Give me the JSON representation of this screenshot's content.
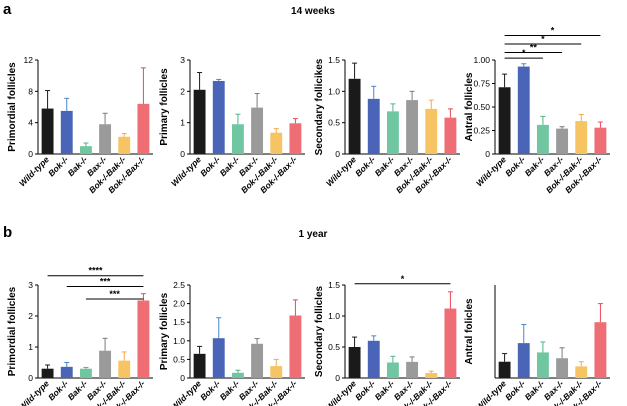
{
  "rows": [
    {
      "letter": "a",
      "title": "14 weeks"
    },
    {
      "letter": "b",
      "title": "1 year"
    }
  ],
  "colors": [
    "#1a1a1a",
    "#4a64b8",
    "#6fc6a0",
    "#9a9a9a",
    "#f6c463",
    "#ef6d74"
  ],
  "error_colors": [
    "#1a1a1a",
    "#4a86c8",
    "#4db688",
    "#7a7a7a",
    "#f3a94a",
    "#e84a56"
  ],
  "chart_data": [
    {
      "type": "bar",
      "row": 0,
      "categories": [
        "Wild-type",
        "Bok-/-",
        "Bak-/-",
        "Bax-/-",
        "Bok-/-Bak-/-",
        "Bok-/-Bax-/-"
      ],
      "values": [
        5.8,
        5.5,
        1.0,
        3.8,
        2.2,
        6.4
      ],
      "errors": [
        2.3,
        1.6,
        0.4,
        1.4,
        0.4,
        4.6
      ],
      "ylabel": "Primordial follicles",
      "ylim": [
        0,
        12
      ],
      "yticks": [
        "0",
        "4",
        "8",
        "12"
      ],
      "ytick_values": [
        0,
        4,
        8,
        12
      ],
      "significance": []
    },
    {
      "type": "bar",
      "row": 0,
      "categories": [
        "Wild-type",
        "Bok-/-",
        "Bak-/-",
        "Bax-/-",
        "Bok-/-Bak-/-",
        "Bok-/-Bax-/-"
      ],
      "values": [
        2.05,
        2.33,
        0.95,
        1.48,
        0.68,
        0.98
      ],
      "errors": [
        0.55,
        0.05,
        0.32,
        0.45,
        0.13,
        0.15
      ],
      "ylabel": "Primary follicles",
      "ylim": [
        0,
        3
      ],
      "yticks": [
        "0",
        "1",
        "2",
        "3"
      ],
      "ytick_values": [
        0,
        1,
        2,
        3
      ],
      "significance": []
    },
    {
      "type": "bar",
      "row": 0,
      "categories": [
        "Wild-type",
        "Bok-/-",
        "Bak-/-",
        "Bax-/-",
        "Bok-/-Bak-/-",
        "Bok-/-Bax-/-"
      ],
      "values": [
        1.2,
        0.88,
        0.68,
        0.86,
        0.72,
        0.58
      ],
      "errors": [
        0.25,
        0.2,
        0.12,
        0.14,
        0.14,
        0.14
      ],
      "ylabel": "Secondary follicikes",
      "ylim": [
        0,
        1.5
      ],
      "yticks": [
        "0",
        "0.5",
        "1.0",
        "1.5"
      ],
      "ytick_values": [
        0,
        0.5,
        1.0,
        1.5
      ],
      "significance": []
    },
    {
      "type": "bar",
      "row": 0,
      "categories": [
        "Wild-type",
        "Bok-/-",
        "Bak-/-",
        "Bax-/-",
        "Bok-/-Bak-/-",
        "Bok-/-Bax-/-"
      ],
      "values": [
        0.71,
        0.93,
        0.31,
        0.27,
        0.35,
        0.28
      ],
      "errors": [
        0.14,
        0.03,
        0.09,
        0.02,
        0.07,
        0.06
      ],
      "ylabel": "Antral follicles",
      "ylim": [
        0,
        1.0
      ],
      "yticks": [
        "0",
        "0.25",
        "0.50",
        "0.75",
        "1.00"
      ],
      "ytick_values": [
        0,
        0.25,
        0.5,
        0.75,
        1.0
      ],
      "significance": [
        {
          "from": 0,
          "to": 2,
          "label": "*",
          "level": 1.02
        },
        {
          "from": 0,
          "to": 3,
          "label": "**",
          "level": 1.08
        },
        {
          "from": 0,
          "to": 4,
          "label": "*",
          "level": 1.17
        },
        {
          "from": 0,
          "to": 5,
          "label": "*",
          "level": 1.26
        }
      ]
    },
    {
      "type": "bar",
      "row": 1,
      "categories": [
        "Wild-type",
        "Bok-/-",
        "Bak-/-",
        "Bax-/-",
        "Bok-/-Bak-/-",
        "Bok-/-Bax-/-"
      ],
      "values": [
        0.3,
        0.36,
        0.3,
        0.88,
        0.56,
        2.5
      ],
      "errors": [
        0.12,
        0.14,
        0.04,
        0.4,
        0.28,
        0.22
      ],
      "ylabel": "Primordial follicles",
      "ylim": [
        0,
        3
      ],
      "yticks": [
        "0",
        "1",
        "2",
        "3"
      ],
      "ytick_values": [
        0,
        1,
        2,
        3
      ],
      "significance": [
        {
          "from": 0,
          "to": 5,
          "label": "****",
          "level": 3.3
        },
        {
          "from": 1,
          "to": 5,
          "label": "***",
          "level": 2.95
        },
        {
          "from": 2,
          "to": 5,
          "label": "***",
          "level": 2.55
        }
      ]
    },
    {
      "type": "bar",
      "row": 1,
      "categories": [
        "Wild-type",
        "Bok-/-",
        "Bak-/-",
        "Bax-/-",
        "Bok-/-Bak-/-",
        "Bok-/-Bax-/-"
      ],
      "values": [
        0.65,
        1.07,
        0.14,
        0.92,
        0.32,
        1.68
      ],
      "errors": [
        0.2,
        0.55,
        0.07,
        0.14,
        0.18,
        0.42
      ],
      "ylabel": "Primary follicles",
      "ylim": [
        0,
        2.5
      ],
      "yticks": [
        "0",
        "0.5",
        "1.0",
        "1.5",
        "2.0",
        "2.5"
      ],
      "ytick_values": [
        0,
        0.5,
        1.0,
        1.5,
        2.0,
        2.5
      ],
      "significance": []
    },
    {
      "type": "bar",
      "row": 1,
      "categories": [
        "Wild-type",
        "Bok-/-",
        "Bak-/-",
        "Bax-/-",
        "Bok-/-Bak-/-",
        "Bok-/-Bax-/-"
      ],
      "values": [
        0.5,
        0.6,
        0.25,
        0.26,
        0.08,
        1.12
      ],
      "errors": [
        0.16,
        0.08,
        0.1,
        0.08,
        0.03,
        0.27
      ],
      "ylabel": "Secondary follicles",
      "ylim": [
        0,
        1.5
      ],
      "yticks": [
        "0",
        "0.5",
        "1.0",
        "1.5"
      ],
      "ytick_values": [
        0,
        0.5,
        1.0,
        1.5
      ],
      "significance": [
        {
          "from": 0,
          "to": 5,
          "label": "*",
          "level": 1.52
        }
      ]
    },
    {
      "type": "bar",
      "row": 1,
      "categories": [
        "Wild-type",
        "Bok-/-",
        "Bak-/-",
        "Bax-/-",
        "Bok-/-Bak-/-",
        "Bok-/-Bax-/-"
      ],
      "values": [
        0.14,
        0.3,
        0.22,
        0.17,
        0.1,
        0.48
      ],
      "errors": [
        0.07,
        0.16,
        0.09,
        0.09,
        0.04,
        0.16
      ],
      "ylabel": "Antral folicles",
      "ylim": [
        0,
        0.8
      ],
      "yticks": [],
      "ytick_values": [],
      "significance": []
    }
  ]
}
